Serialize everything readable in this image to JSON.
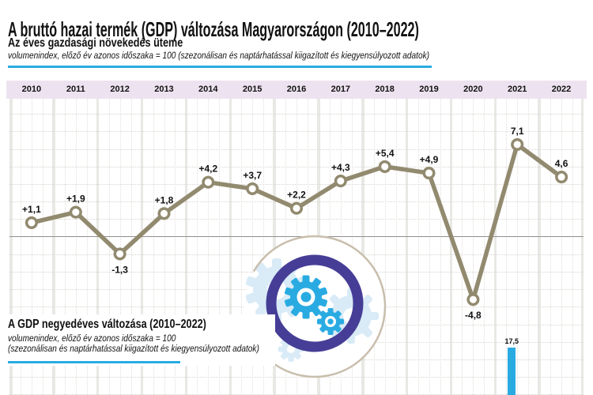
{
  "page": {
    "title": "A bruttó hazai termék (GDP) változása Magyarországon (2010–2022)"
  },
  "annual_section": {
    "heading": "Az éves gazdasági növekedés üteme",
    "subtitle": "volumenindex, előző év azonos időszaka = 100 (szezonálisan és naptárhatással kiigazított és kiegyensúlyozott adatok)"
  },
  "quarterly_section": {
    "heading": "A GDP negyedéves változása (2010–2022)",
    "subtitle_line1": "volumenindex, előző év azonos időszaka = 100",
    "subtitle_line2": "(szezonálisan és naptárhatással kiigazított és kiegyensúlyozott adatok)"
  },
  "colors": {
    "accent_cyan": "#29ABE2",
    "line": "#928A6F",
    "year_band_bg": "#EDE3F0",
    "grid_band": "#E8E8E4",
    "grid_dot": "#D8D5D0",
    "zero_line": "#8F8F8F",
    "icon_ring_purple": "#463E96",
    "icon_gear_cyan": "#29ABE2",
    "icon_gear_light": "#D9EBF7",
    "icon_circle_beige": "#C9BEAD",
    "text": "#111111"
  },
  "chart_data": [
    {
      "type": "line",
      "title": "Az éves gazdasági növekedés üteme",
      "categories": [
        "2010",
        "2011",
        "2012",
        "2013",
        "2014",
        "2015",
        "2016",
        "2017",
        "2018",
        "2019",
        "2020",
        "2021",
        "2022"
      ],
      "values": [
        1.1,
        1.9,
        -1.3,
        1.8,
        4.2,
        3.7,
        2.2,
        4.3,
        5.4,
        4.9,
        -4.8,
        7.1,
        4.6
      ],
      "point_labels": [
        "+1,1",
        "+1,9",
        "-1,3",
        "+1,8",
        "+4,2",
        "+3,7",
        "+2,2",
        "+4,3",
        "+5,4",
        "+4,9",
        "-4,8",
        "7,1",
        "4,6"
      ],
      "x_axis_position": "top",
      "zero_line": true,
      "grid": "graph-paper with year columns and quarterly dotted dividers",
      "legend": "none"
    },
    {
      "type": "bar",
      "title": "A GDP negyedéves változása (2010–2022)",
      "note": "chart area is cut off at the bottom edge of the image; only the top of one bar is visible",
      "bars": [
        {
          "year": "2021",
          "quarter": 2,
          "value": 17.5,
          "label": "17,5"
        }
      ]
    }
  ]
}
